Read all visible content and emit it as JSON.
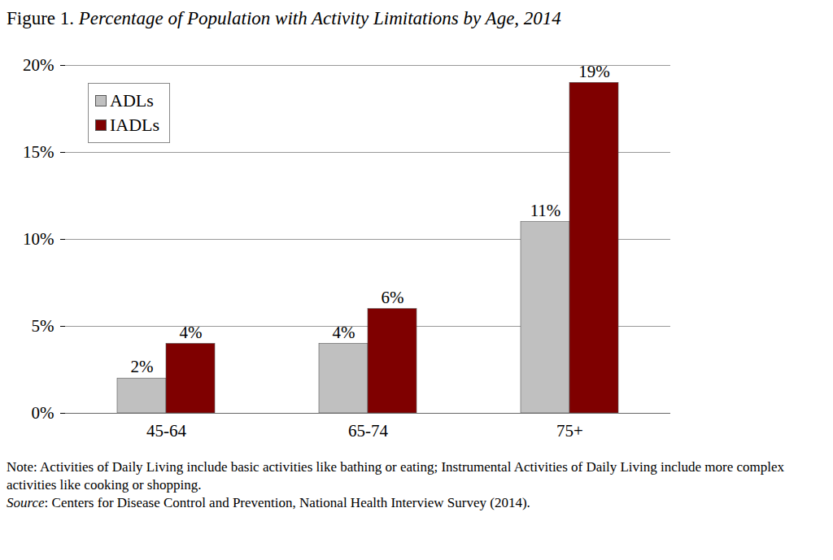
{
  "chart_data": {
    "type": "bar",
    "title": "Figure 1. Percentage of Population with Activity Limitations by Age, 2014",
    "categories": [
      "45-64",
      "65-74",
      "75+"
    ],
    "series": [
      {
        "name": "ADLs",
        "color": "#c0c0c0",
        "values": [
          2,
          4,
          11
        ],
        "value_labels": [
          "2%",
          "4%",
          "11%"
        ]
      },
      {
        "name": "IADLs",
        "color": "#7f0000",
        "values": [
          4,
          6,
          19
        ],
        "value_labels": [
          "4%",
          "6%",
          "19%"
        ]
      }
    ],
    "ylim": [
      0,
      20
    ],
    "yticks": [
      {
        "value": 0,
        "label": "0%"
      },
      {
        "value": 5,
        "label": "5%"
      },
      {
        "value": 10,
        "label": "10%"
      },
      {
        "value": 15,
        "label": "15%"
      },
      {
        "value": 20,
        "label": "20%"
      }
    ],
    "grid": true,
    "legend": "upper left",
    "data_labels": true,
    "note": "Note: Activities of Daily Living include basic activities like bathing or eating; Instrumental Activities of Daily Living include more complex activities like cooking or shopping.",
    "source": "Source: Centers for Disease Control and Prevention, National Health Interview Survey (2014)."
  }
}
